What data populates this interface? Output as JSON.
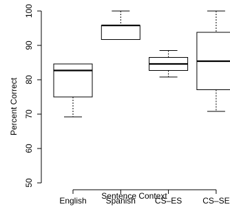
{
  "chart_data": {
    "type": "boxplot",
    "title": "",
    "xlabel": "Sentence Context",
    "ylabel": "Percent Correct",
    "ylim": [
      50,
      100
    ],
    "yticks": [
      50,
      60,
      70,
      80,
      90,
      100
    ],
    "ytick_labels": [
      "50",
      "60",
      "70",
      "80",
      "90",
      "100"
    ],
    "categories": [
      "English",
      "Spanish",
      "CS–ES",
      "CS–SE"
    ],
    "series": [
      {
        "category": "English",
        "whisker_low": 69.2,
        "q1": 75.0,
        "median": 82.7,
        "q3": 84.6,
        "whisker_high": 84.6
      },
      {
        "category": "Spanish",
        "whisker_low": 91.7,
        "q1": 91.7,
        "median": 95.8,
        "q3": 95.8,
        "whisker_high": 100.0
      },
      {
        "category": "CS–ES",
        "whisker_low": 80.8,
        "q1": 82.7,
        "median": 84.6,
        "q3": 86.5,
        "whisker_high": 88.5
      },
      {
        "category": "CS–SE",
        "whisker_low": 70.8,
        "q1": 77.1,
        "median": 85.4,
        "q3": 93.8,
        "whisker_high": 100.0
      }
    ],
    "grid": false,
    "legend": "none"
  }
}
